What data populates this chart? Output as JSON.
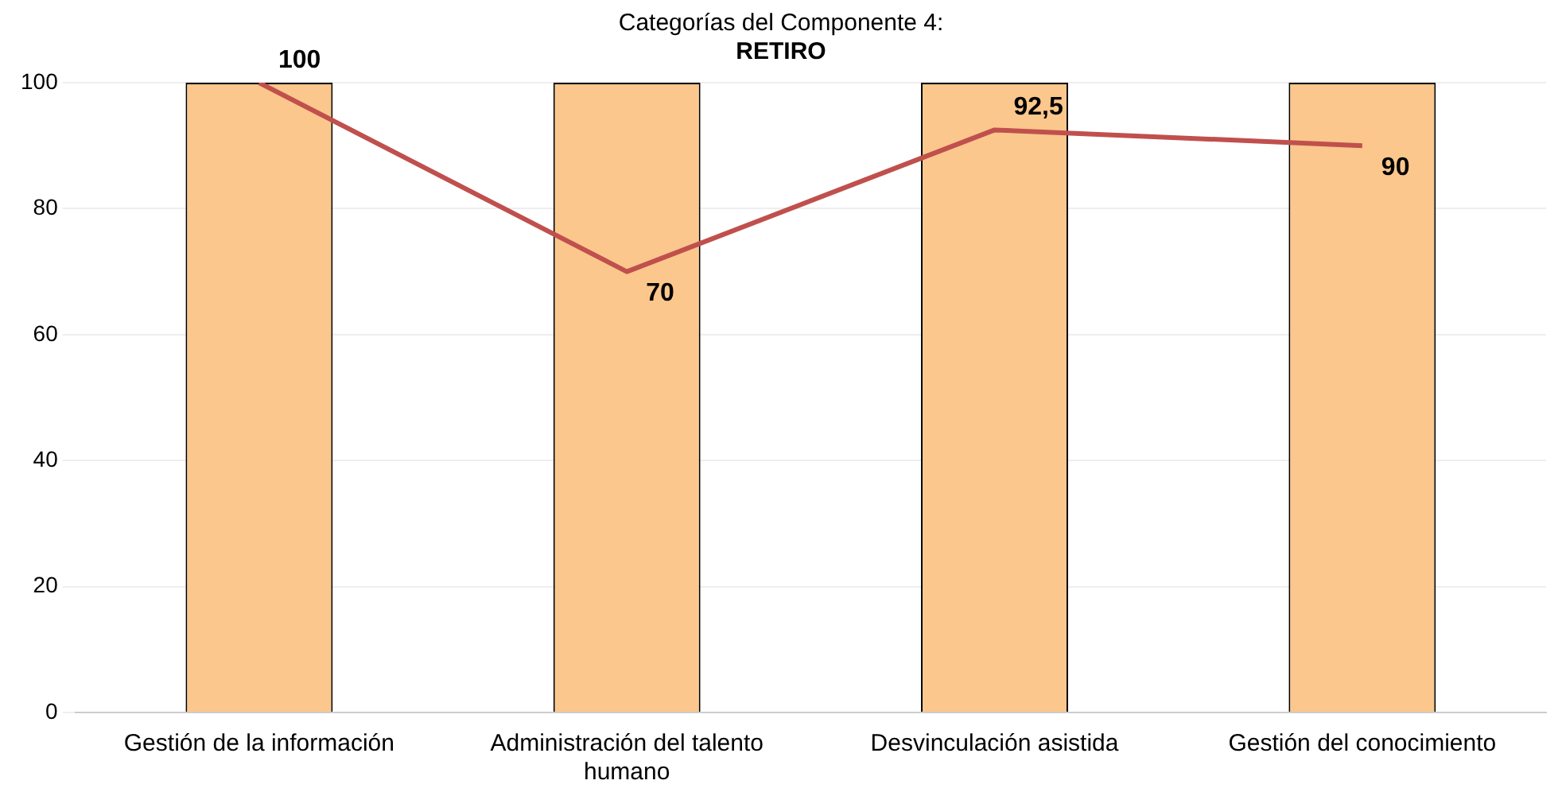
{
  "chart_data": {
    "type": "bar",
    "title": "Categorías del Componente 4:",
    "subtitle": "RETIRO",
    "categories": [
      "Gestión de la información",
      "Administración del talento humano",
      "Desvinculación asistida",
      "Gestión del conocimiento"
    ],
    "series": [
      {
        "color": "#fbc78c",
        "values": [
          100,
          100,
          100,
          100
        ]
      },
      {
        "type": "line",
        "color": "#c0504d",
        "values": [
          100,
          70,
          92.5,
          90
        ],
        "value_labels": [
          "100",
          "70",
          "92,5",
          "90"
        ]
      }
    ],
    "ylim": [
      0,
      100
    ],
    "yticks": [
      0,
      20,
      40,
      60,
      80,
      100
    ],
    "grid": "y",
    "legend": false,
    "marker": "none"
  }
}
